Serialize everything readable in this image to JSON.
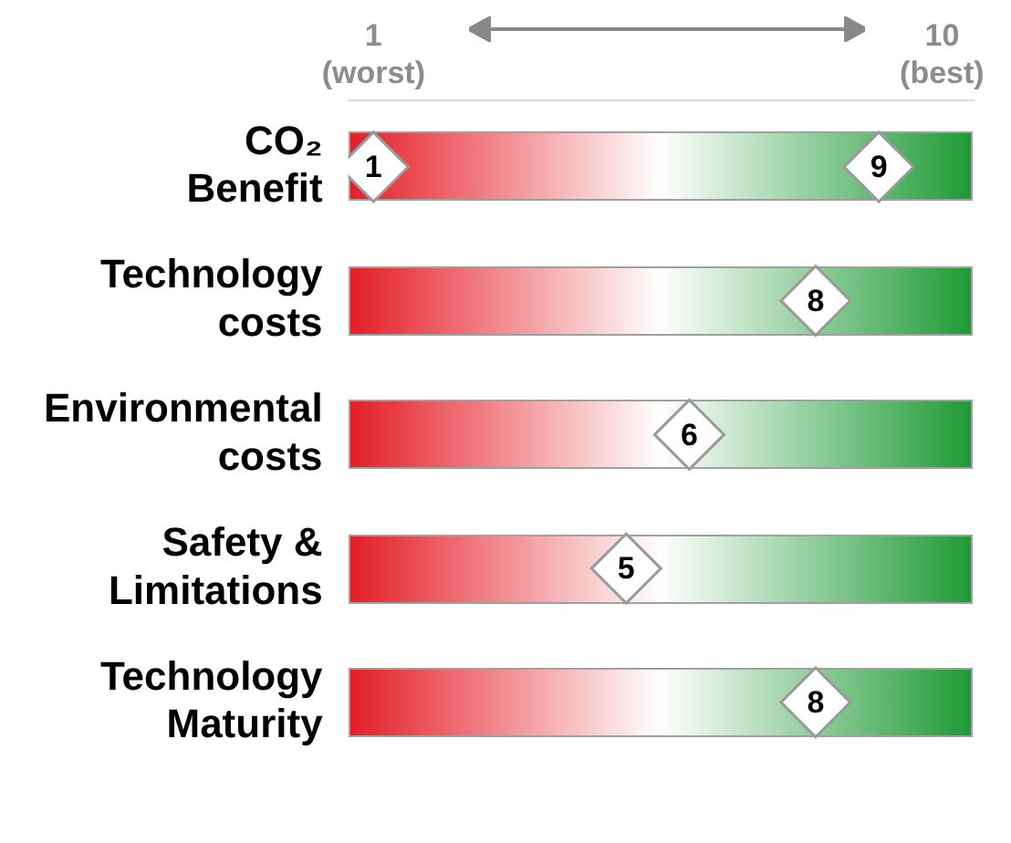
{
  "chart_data": {
    "type": "scatter",
    "orientation": "horizontal",
    "categories": [
      "CO₂ Benefit",
      "Technology costs",
      "Environmental costs",
      "Safety & Limitations",
      "Technology Maturity"
    ],
    "series": [
      {
        "color": "#ffffff",
        "values": [
          1,
          null,
          null,
          null,
          null
        ]
      },
      {
        "color": "#ffffff",
        "values": [
          9,
          8,
          6,
          5,
          8
        ]
      }
    ],
    "xlim": [
      0.6,
      10.5
    ],
    "xticks": [
      {
        "value": 1,
        "label": "1\n(worst)"
      },
      {
        "value": 10,
        "label": "10\n(best)"
      }
    ],
    "marker": "diamond",
    "data_labels": true,
    "grid": false,
    "legend": false
  }
}
